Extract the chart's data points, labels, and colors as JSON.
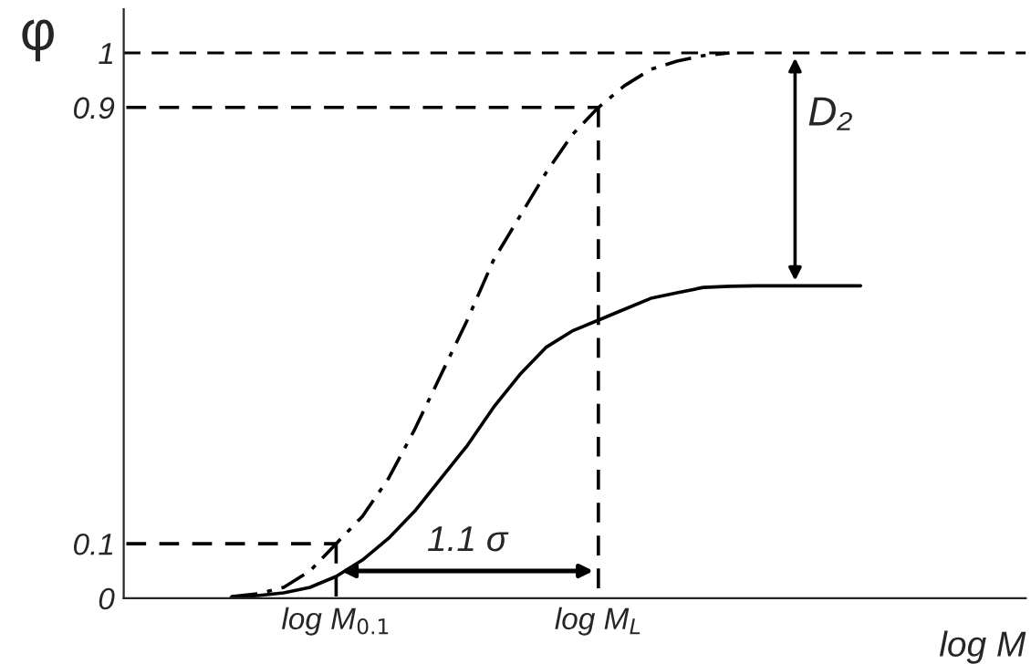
{
  "chart_data": {
    "type": "line",
    "xlabel": "log M",
    "ylabel": "φ",
    "categories": [
      null,
      null,
      null,
      null,
      null,
      null,
      null,
      null,
      "log M$_{0.1}$",
      null,
      null,
      null,
      null,
      null,
      null,
      null,
      null,
      null,
      "log M$_{L}$",
      null,
      null,
      null,
      null,
      null,
      null,
      null,
      null,
      null,
      null,
      null,
      null,
      null,
      null,
      null,
      null
    ],
    "ylim": [
      0,
      1.08
    ],
    "yticks": [
      0,
      0.1,
      0.9,
      1
    ],
    "series": [
      {
        "color": "#000000",
        "line_style": "dashdot",
        "values": [
          null,
          null,
          null,
          null,
          0.003,
          0.008,
          0.02,
          0.05,
          0.1,
          0.15,
          0.22,
          0.31,
          0.41,
          0.51,
          0.62,
          0.7,
          0.78,
          0.85,
          0.9,
          0.94,
          0.97,
          0.985,
          0.995,
          1.0,
          null,
          null,
          null,
          null,
          null,
          null,
          null,
          null,
          null,
          null,
          null
        ]
      },
      {
        "color": "#000000",
        "line_style": "solid",
        "values": [
          null,
          null,
          null,
          null,
          0.002,
          0.005,
          0.01,
          0.02,
          0.04,
          0.07,
          0.11,
          0.16,
          0.22,
          0.28,
          0.35,
          0.41,
          0.46,
          0.49,
          0.51,
          0.53,
          0.55,
          0.56,
          0.57,
          0.572,
          0.573,
          0.573,
          0.573,
          0.573,
          0.573,
          null,
          null,
          null,
          null,
          null,
          null
        ]
      },
      {
        "color": "#000000",
        "line_style": "dashed",
        "values": [
          0.1,
          0.1,
          0.1,
          0.1,
          0.1,
          0.1,
          0.1,
          0.1,
          0.1,
          null,
          null,
          null,
          null,
          null,
          null,
          null,
          null,
          null,
          null,
          null,
          null,
          null,
          null,
          null,
          null,
          null,
          null,
          null,
          null,
          null,
          null,
          null,
          null,
          null,
          null
        ]
      },
      {
        "color": "#000000",
        "line_style": "dashed",
        "values": [
          0.9,
          0.9,
          0.9,
          0.9,
          0.9,
          0.9,
          0.9,
          0.9,
          0.9,
          0.9,
          0.9,
          0.9,
          0.9,
          0.9,
          0.9,
          0.9,
          0.9,
          0.9,
          0.9,
          null,
          null,
          null,
          null,
          null,
          null,
          null,
          null,
          null,
          null,
          null,
          null,
          null,
          null,
          null,
          null
        ]
      }
    ],
    "ref_lines": [
      {
        "axis": "y",
        "value": 1,
        "line_style": "dashed",
        "color": "#000000"
      }
    ],
    "annotations": [
      "1.1 σ",
      "D₂"
    ],
    "grid": false
  }
}
